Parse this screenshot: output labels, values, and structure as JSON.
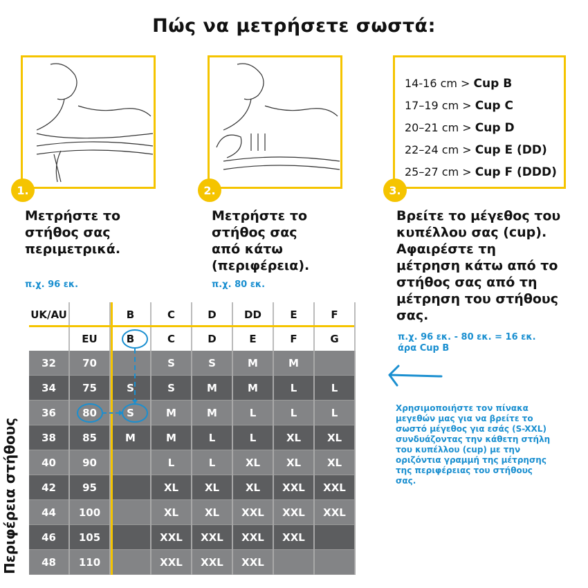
{
  "title": "Πώς να μετρήσετε σωστά:",
  "steps": [
    {
      "num": "1.",
      "text": "Μετρήστε το στήθος σας περιμετρικά.",
      "example": "π.χ. 96 εκ."
    },
    {
      "num": "2.",
      "text": "Μετρήστε το στήθος σας από κάτω (περιφέρεια).",
      "example": "π.χ. 80 εκ."
    },
    {
      "num": "3.",
      "text": "Βρείτε το μέγεθος του κυπέλλου σας (cup). Αφαιρέστε τη μέτρηση κάτω από το στήθος σας από τη μέτρηση του στήθους σας.",
      "example_line1": "π.χ. 96 εκ. - 80 εκ. = 16 εκ.",
      "example_line2": "άρα Cup B"
    }
  ],
  "cup_guide": [
    {
      "range": "14-16 cm >",
      "cup": "Cup B"
    },
    {
      "range": "17–19 cm >",
      "cup": "Cup C"
    },
    {
      "range": "20–21 cm >",
      "cup": "Cup D"
    },
    {
      "range": "22–24 cm >",
      "cup": "Cup E (DD)"
    },
    {
      "range": "25–27 cm >",
      "cup": "Cup F (DDD)"
    }
  ],
  "table": {
    "header_uk": [
      "UK/AU",
      "",
      "B",
      "C",
      "D",
      "DD",
      "E",
      "F"
    ],
    "header_eu": [
      "",
      "EU",
      "B",
      "C",
      "D",
      "E",
      "F",
      "G"
    ],
    "rows": [
      [
        "32",
        "70",
        "",
        "S",
        "S",
        "M",
        "M",
        ""
      ],
      [
        "34",
        "75",
        "S",
        "S",
        "M",
        "M",
        "L",
        "L"
      ],
      [
        "36",
        "80",
        "S",
        "M",
        "M",
        "L",
        "L",
        "L"
      ],
      [
        "38",
        "85",
        "M",
        "M",
        "L",
        "L",
        "XL",
        "XL"
      ],
      [
        "40",
        "90",
        "",
        "L",
        "L",
        "XL",
        "XL",
        "XL"
      ],
      [
        "42",
        "95",
        "",
        "XL",
        "XL",
        "XL",
        "XXL",
        "XXL"
      ],
      [
        "44",
        "100",
        "",
        "XL",
        "XL",
        "XXL",
        "XXL",
        "XXL"
      ],
      [
        "46",
        "105",
        "",
        "XXL",
        "XXL",
        "XXL",
        "XXL",
        ""
      ],
      [
        "48",
        "110",
        "",
        "XXL",
        "XXL",
        "XXL",
        "",
        ""
      ]
    ],
    "side_label": "Περιφέρεια στήθους"
  },
  "note": "Χρησιμοποιήστε τον πίνακα μεγεθών μας για να βρείτε το σωστό μέγεθος για εσάς (S-XXL) συνδυάζοντας την κάθετη στήλη του κυπέλλου (cup) με την οριζόντια γραμμή της μέτρησης της περιφέρειας του στήθους σας.",
  "colors": {
    "accent": "#f5c400",
    "blue": "#1a8fd0",
    "row_light": "#838486",
    "row_dark": "#5c5d5f"
  }
}
